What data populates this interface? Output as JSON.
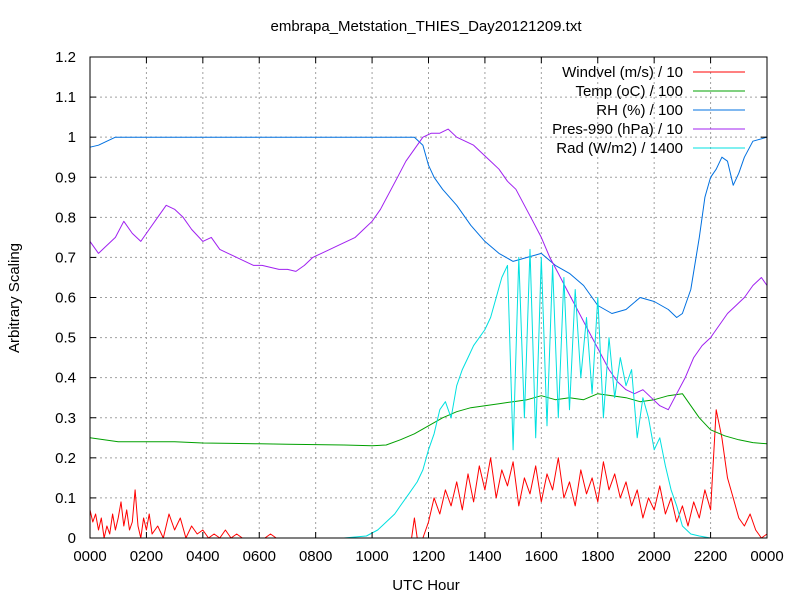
{
  "chart_data": {
    "type": "line",
    "title": "embrapa_Metstation_THIES_Day20121209.txt",
    "xlabel": "UTC Hour",
    "ylabel": "Arbitrary Scaling",
    "xlim": [
      0,
      24
    ],
    "ylim": [
      0,
      1.2
    ],
    "grid": true,
    "legend_position": "top-right",
    "x_ticks": [
      {
        "v": 0,
        "label": "0000"
      },
      {
        "v": 2,
        "label": "0200"
      },
      {
        "v": 4,
        "label": "0400"
      },
      {
        "v": 6,
        "label": "0600"
      },
      {
        "v": 8,
        "label": "0800"
      },
      {
        "v": 10,
        "label": "1000"
      },
      {
        "v": 12,
        "label": "1200"
      },
      {
        "v": 14,
        "label": "1400"
      },
      {
        "v": 16,
        "label": "1600"
      },
      {
        "v": 18,
        "label": "1800"
      },
      {
        "v": 20,
        "label": "2000"
      },
      {
        "v": 22,
        "label": "2200"
      },
      {
        "v": 24,
        "label": "0000"
      }
    ],
    "y_ticks": [
      {
        "v": 0,
        "label": "0"
      },
      {
        "v": 0.1,
        "label": "0.1"
      },
      {
        "v": 0.2,
        "label": "0.2"
      },
      {
        "v": 0.3,
        "label": "0.3"
      },
      {
        "v": 0.4,
        "label": "0.4"
      },
      {
        "v": 0.5,
        "label": "0.5"
      },
      {
        "v": 0.6,
        "label": "0.6"
      },
      {
        "v": 0.7,
        "label": "0.7"
      },
      {
        "v": 0.8,
        "label": "0.8"
      },
      {
        "v": 0.9,
        "label": "0.9"
      },
      {
        "v": 1,
        "label": "1"
      },
      {
        "v": 1.1,
        "label": "1.1"
      },
      {
        "v": 1.2,
        "label": "1.2"
      }
    ],
    "series": [
      {
        "name": "Windvel (m/s) / 10",
        "color": "#ff0000",
        "x": [
          0,
          0.1,
          0.2,
          0.3,
          0.4,
          0.5,
          0.6,
          0.7,
          0.8,
          0.9,
          1.0,
          1.1,
          1.2,
          1.3,
          1.4,
          1.5,
          1.6,
          1.7,
          1.8,
          1.9,
          2.0,
          2.1,
          2.2,
          2.4,
          2.6,
          2.8,
          3.0,
          3.2,
          3.4,
          3.6,
          3.8,
          4.0,
          4.2,
          4.4,
          4.6,
          4.8,
          5.0,
          5.2,
          5.4,
          5.6,
          5.8,
          6.0,
          6.2,
          6.4,
          6.6,
          6.8,
          7.0,
          7.5,
          8.0,
          9.0,
          10.0,
          11.0,
          11.4,
          11.5,
          11.6,
          11.8,
          12.0,
          12.2,
          12.4,
          12.6,
          12.8,
          13.0,
          13.2,
          13.4,
          13.6,
          13.8,
          14.0,
          14.2,
          14.4,
          14.6,
          14.8,
          15.0,
          15.2,
          15.4,
          15.6,
          15.8,
          16.0,
          16.2,
          16.4,
          16.6,
          16.8,
          17.0,
          17.2,
          17.4,
          17.6,
          17.8,
          18.0,
          18.2,
          18.4,
          18.6,
          18.8,
          19.0,
          19.2,
          19.4,
          19.6,
          19.8,
          20.0,
          20.2,
          20.4,
          20.6,
          20.8,
          21.0,
          21.2,
          21.4,
          21.6,
          21.8,
          22.0,
          22.2,
          22.4,
          22.6,
          22.8,
          23.0,
          23.2,
          23.4,
          23.6,
          23.8,
          24.0
        ],
        "y": [
          0.07,
          0.04,
          0.06,
          0.02,
          0.05,
          0.0,
          0.03,
          0.01,
          0.06,
          0.02,
          0.05,
          0.09,
          0.03,
          0.07,
          0.02,
          0.04,
          0.12,
          0.03,
          0.0,
          0.05,
          0.02,
          0.06,
          0.01,
          0.03,
          0.0,
          0.06,
          0.02,
          0.05,
          0.0,
          0.03,
          0.01,
          0.02,
          0.0,
          0.01,
          0.0,
          0.02,
          0.0,
          0.01,
          0.0,
          0.0,
          0.0,
          0.0,
          0.0,
          0.01,
          0.0,
          0.0,
          0.0,
          0.0,
          0.0,
          0.0,
          0.0,
          0.0,
          0.0,
          0.05,
          0.0,
          0.0,
          0.04,
          0.1,
          0.06,
          0.12,
          0.08,
          0.14,
          0.07,
          0.16,
          0.09,
          0.18,
          0.12,
          0.2,
          0.1,
          0.17,
          0.13,
          0.19,
          0.08,
          0.15,
          0.11,
          0.18,
          0.09,
          0.16,
          0.12,
          0.2,
          0.1,
          0.14,
          0.08,
          0.17,
          0.11,
          0.15,
          0.09,
          0.19,
          0.12,
          0.16,
          0.1,
          0.14,
          0.08,
          0.12,
          0.05,
          0.1,
          0.07,
          0.13,
          0.06,
          0.1,
          0.04,
          0.08,
          0.03,
          0.09,
          0.05,
          0.12,
          0.07,
          0.32,
          0.25,
          0.15,
          0.1,
          0.05,
          0.03,
          0.06,
          0.02,
          0.0,
          0.01
        ],
        "line_style": "solid"
      },
      {
        "name": "Temp (oC) / 100",
        "color": "#00a000",
        "x": [
          0,
          0.5,
          1,
          2,
          3,
          4,
          5,
          6,
          7,
          8,
          9,
          10,
          10.5,
          11,
          11.5,
          12,
          12.5,
          13,
          13.5,
          14,
          14.5,
          15,
          15.5,
          16,
          16.5,
          17,
          17.5,
          18,
          18.5,
          19,
          19.5,
          20,
          20.5,
          21,
          21.3,
          21.6,
          22,
          22.5,
          23,
          23.5,
          24
        ],
        "y": [
          0.25,
          0.245,
          0.24,
          0.24,
          0.24,
          0.237,
          0.236,
          0.235,
          0.234,
          0.233,
          0.232,
          0.23,
          0.232,
          0.245,
          0.26,
          0.28,
          0.3,
          0.315,
          0.325,
          0.33,
          0.335,
          0.34,
          0.345,
          0.355,
          0.345,
          0.35,
          0.345,
          0.36,
          0.355,
          0.35,
          0.34,
          0.345,
          0.355,
          0.36,
          0.33,
          0.3,
          0.27,
          0.255,
          0.245,
          0.238,
          0.235
        ],
        "line_style": "solid"
      },
      {
        "name": "RH (%) / 100",
        "color": "#0070e0",
        "x": [
          0,
          0.3,
          0.6,
          0.9,
          1.2,
          2,
          4,
          6,
          8,
          10,
          11,
          11.5,
          11.8,
          12,
          12.2,
          12.5,
          13,
          13.5,
          14,
          14.5,
          15,
          15.5,
          16,
          16.5,
          17,
          17.5,
          18,
          18.5,
          19,
          19.5,
          20,
          20.5,
          20.8,
          21,
          21.3,
          21.6,
          21.8,
          22,
          22.2,
          22.4,
          22.6,
          22.8,
          23,
          23.2,
          23.5,
          24
        ],
        "y": [
          0.975,
          0.98,
          0.99,
          1.0,
          1.0,
          1.0,
          1.0,
          1.0,
          1.0,
          1.0,
          1.0,
          1.0,
          0.98,
          0.93,
          0.9,
          0.87,
          0.83,
          0.78,
          0.74,
          0.71,
          0.69,
          0.7,
          0.71,
          0.68,
          0.66,
          0.63,
          0.58,
          0.56,
          0.57,
          0.6,
          0.59,
          0.57,
          0.55,
          0.56,
          0.62,
          0.75,
          0.85,
          0.9,
          0.92,
          0.95,
          0.94,
          0.88,
          0.91,
          0.95,
          0.99,
          1.0
        ],
        "line_style": "solid"
      },
      {
        "name": "Pres-990 (hPa) / 10",
        "color": "#a020f0",
        "x": [
          0,
          0.3,
          0.6,
          0.9,
          1.2,
          1.5,
          1.8,
          2.1,
          2.4,
          2.7,
          3.0,
          3.3,
          3.6,
          4.0,
          4.3,
          4.6,
          4.9,
          5.2,
          5.5,
          5.8,
          6.1,
          6.4,
          6.7,
          7.0,
          7.3,
          7.6,
          7.9,
          8.2,
          8.5,
          8.8,
          9.1,
          9.4,
          9.7,
          10.0,
          10.3,
          10.6,
          10.9,
          11.2,
          11.5,
          11.8,
          12.1,
          12.4,
          12.7,
          13.0,
          13.3,
          13.6,
          13.9,
          14.2,
          14.5,
          14.8,
          15.1,
          15.4,
          15.7,
          16.0,
          16.3,
          16.6,
          16.9,
          17.2,
          17.5,
          17.8,
          18.1,
          18.4,
          18.7,
          19.0,
          19.3,
          19.6,
          19.9,
          20.2,
          20.5,
          20.8,
          21.1,
          21.4,
          21.7,
          22.0,
          22.3,
          22.6,
          22.9,
          23.2,
          23.5,
          23.8,
          24.0
        ],
        "y": [
          0.74,
          0.71,
          0.73,
          0.75,
          0.79,
          0.76,
          0.74,
          0.77,
          0.8,
          0.83,
          0.82,
          0.8,
          0.77,
          0.74,
          0.75,
          0.72,
          0.71,
          0.7,
          0.69,
          0.68,
          0.68,
          0.675,
          0.67,
          0.67,
          0.665,
          0.68,
          0.7,
          0.71,
          0.72,
          0.73,
          0.74,
          0.75,
          0.77,
          0.79,
          0.82,
          0.86,
          0.9,
          0.94,
          0.97,
          1.0,
          1.01,
          1.01,
          1.02,
          1.0,
          0.99,
          0.98,
          0.96,
          0.94,
          0.92,
          0.89,
          0.87,
          0.83,
          0.79,
          0.75,
          0.7,
          0.66,
          0.62,
          0.58,
          0.54,
          0.5,
          0.46,
          0.42,
          0.39,
          0.37,
          0.36,
          0.37,
          0.35,
          0.33,
          0.32,
          0.36,
          0.4,
          0.45,
          0.48,
          0.5,
          0.53,
          0.56,
          0.58,
          0.6,
          0.63,
          0.65,
          0.63
        ],
        "line_style": "solid"
      },
      {
        "name": "Rad (W/m2) / 1400",
        "color": "#00e0e0",
        "x": [
          0,
          2,
          4,
          6,
          8,
          9,
          9.8,
          10.2,
          10.5,
          10.8,
          11.0,
          11.3,
          11.6,
          11.8,
          12.0,
          12.2,
          12.4,
          12.6,
          12.8,
          13.0,
          13.2,
          13.4,
          13.6,
          13.8,
          14.0,
          14.2,
          14.4,
          14.6,
          14.8,
          15.0,
          15.2,
          15.4,
          15.6,
          15.8,
          16.0,
          16.2,
          16.4,
          16.6,
          16.8,
          17.0,
          17.2,
          17.4,
          17.6,
          17.8,
          18.0,
          18.2,
          18.4,
          18.6,
          18.8,
          19.0,
          19.2,
          19.4,
          19.6,
          19.8,
          20.0,
          20.2,
          20.4,
          20.6,
          20.8,
          21.0,
          21.3,
          21.6,
          22.0,
          24.0
        ],
        "y": [
          0.0,
          0.0,
          0.0,
          0.0,
          0.0,
          0.0,
          0.005,
          0.02,
          0.04,
          0.06,
          0.08,
          0.11,
          0.14,
          0.17,
          0.22,
          0.26,
          0.32,
          0.34,
          0.3,
          0.38,
          0.42,
          0.45,
          0.48,
          0.5,
          0.52,
          0.55,
          0.6,
          0.65,
          0.68,
          0.22,
          0.7,
          0.3,
          0.72,
          0.25,
          0.7,
          0.28,
          0.68,
          0.3,
          0.65,
          0.32,
          0.62,
          0.4,
          0.55,
          0.36,
          0.6,
          0.3,
          0.5,
          0.35,
          0.45,
          0.38,
          0.42,
          0.25,
          0.35,
          0.3,
          0.22,
          0.25,
          0.18,
          0.12,
          0.08,
          0.03,
          0.01,
          0.005,
          0.0,
          0.0
        ],
        "line_style": "solid"
      }
    ]
  }
}
